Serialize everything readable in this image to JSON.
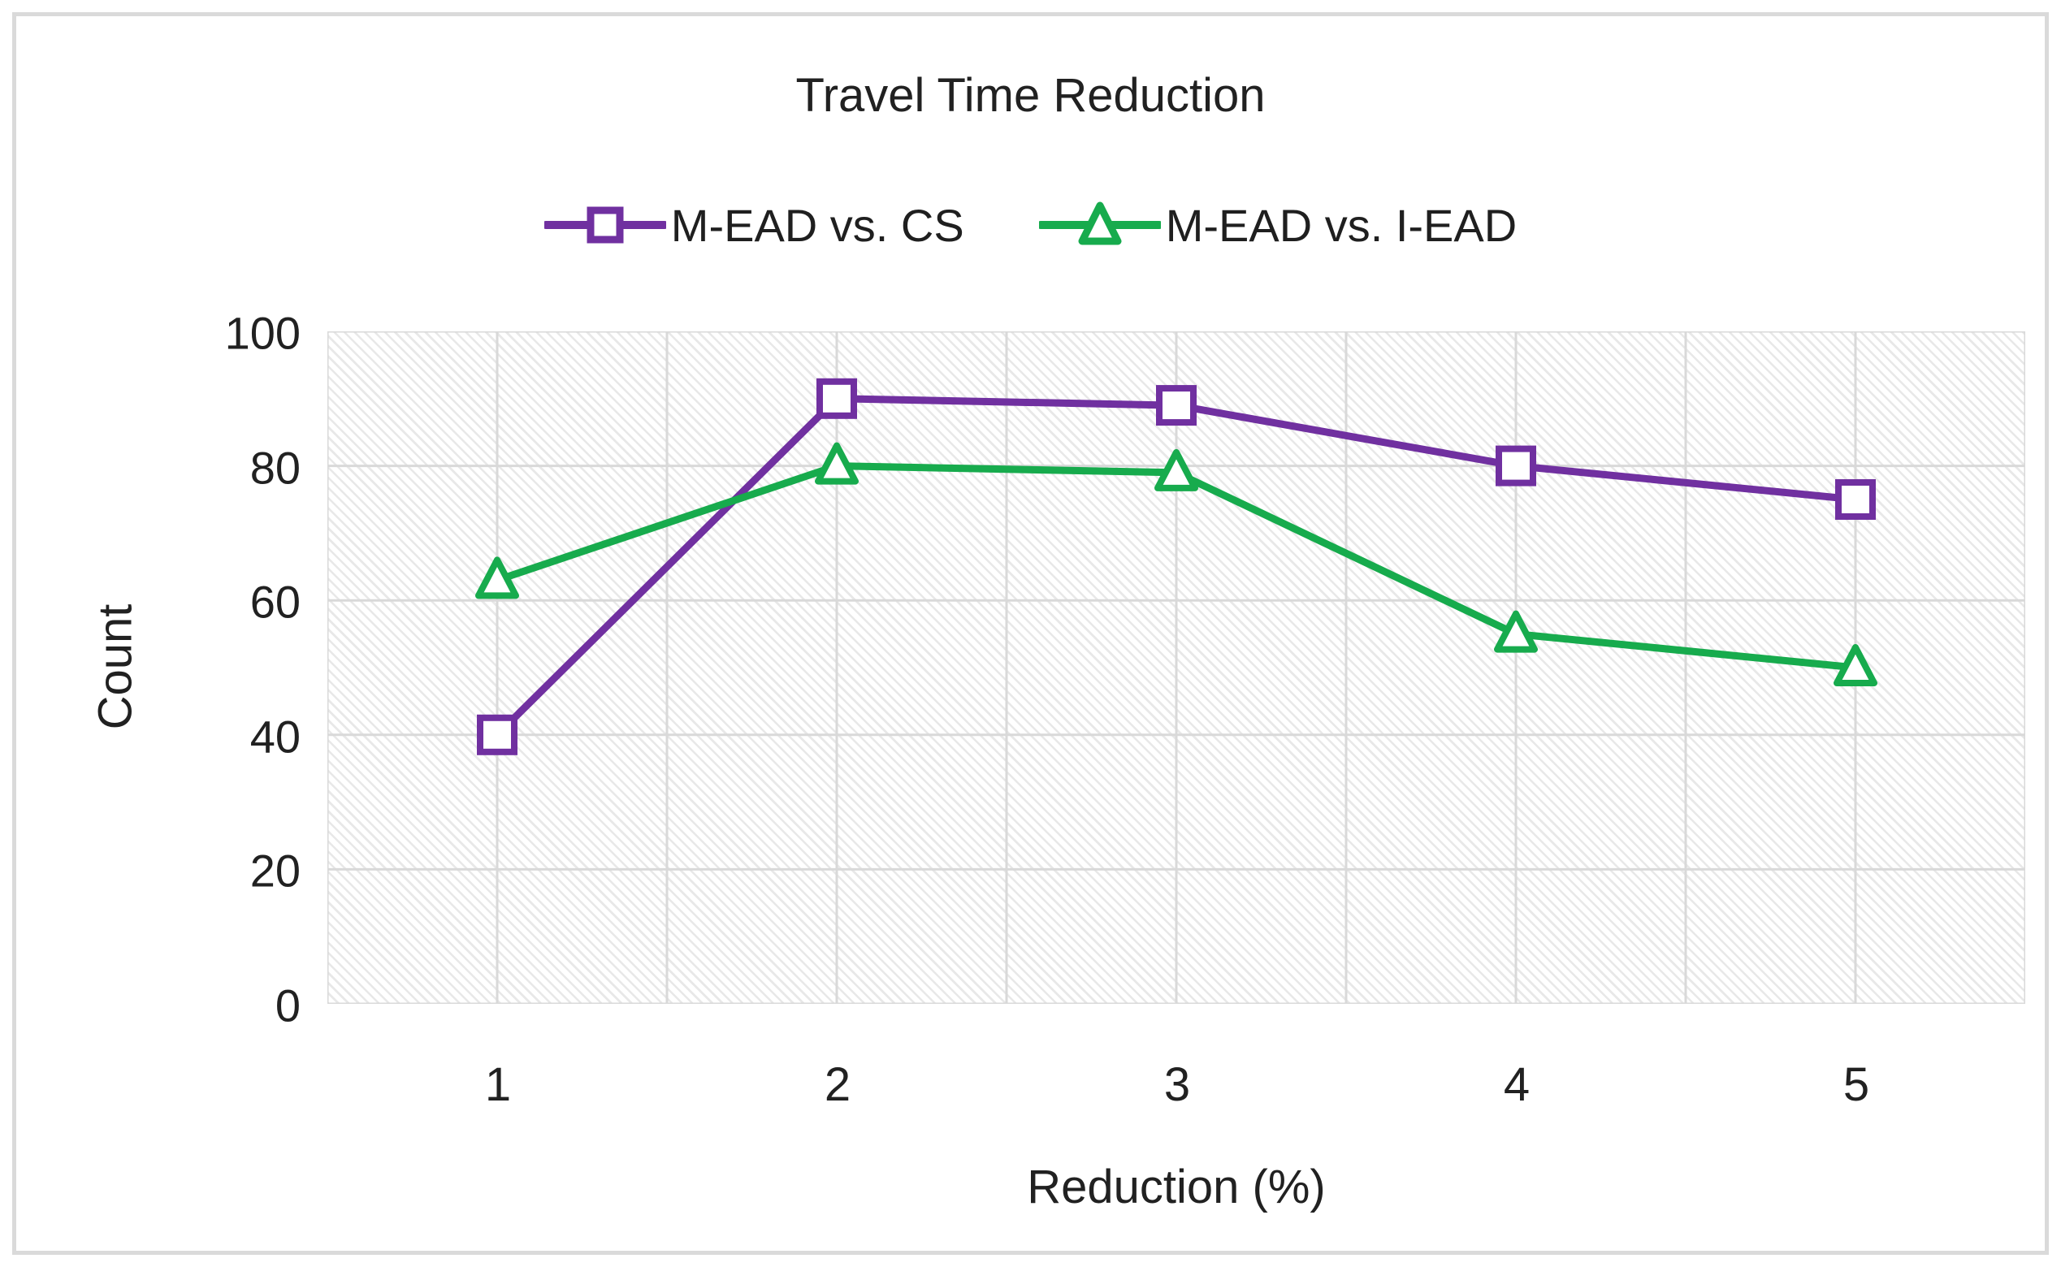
{
  "title": "Travel Time Reduction",
  "legend": {
    "items": [
      {
        "label": "M-EAD vs. CS"
      },
      {
        "label": "M-EAD vs. I-EAD"
      }
    ]
  },
  "axes": {
    "y_title": "Count",
    "x_title": "Reduction (%)",
    "y_ticks": [
      "100",
      "80",
      "60",
      "40",
      "20",
      "0"
    ],
    "x_ticks": [
      "1",
      "2",
      "3",
      "4",
      "5"
    ]
  },
  "colors": {
    "series1": "#7030A0",
    "series2": "#17AB4D",
    "gridline": "#d9d9d9",
    "hatch": "#e8e8e8",
    "frame_border": "#dadada",
    "text": "#212121"
  },
  "chart_data": {
    "type": "line",
    "title": "Travel Time Reduction",
    "xlabel": "Reduction (%)",
    "ylabel": "Count",
    "categories": [
      1,
      2,
      3,
      4,
      5
    ],
    "series": [
      {
        "name": "M-EAD vs. CS",
        "color": "#7030A0",
        "marker": "square",
        "values": [
          40,
          90,
          89,
          80,
          75
        ]
      },
      {
        "name": "M-EAD vs. I-EAD",
        "color": "#17AB4D",
        "marker": "triangle",
        "values": [
          63,
          80,
          79,
          55,
          50
        ]
      }
    ],
    "ylim": [
      0,
      100
    ],
    "yticks": [
      0,
      20,
      40,
      60,
      80,
      100
    ],
    "x_minor_divisions": 10,
    "grid": true,
    "plot_fill": "diagonal-hatch",
    "legend_position": "top-center"
  }
}
